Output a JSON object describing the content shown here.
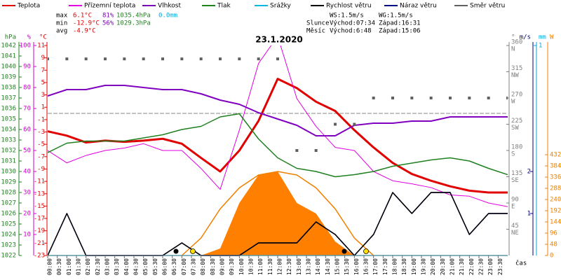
{
  "chart_data": {
    "type": "line",
    "title": "23.1.2020",
    "xlabel": "čas",
    "xlim": [
      0,
      24
    ],
    "xticks": [
      {
        "value": 0,
        "label": "00:00"
      },
      {
        "value": 0.5,
        "label": "00:30"
      },
      {
        "value": 1,
        "label": "01:00"
      },
      {
        "value": 1.5,
        "label": "01:30"
      },
      {
        "value": 2,
        "label": "02:00"
      },
      {
        "value": 2.5,
        "label": "02:30"
      },
      {
        "value": 3,
        "label": "03:00"
      },
      {
        "value": 3.5,
        "label": "03:30"
      },
      {
        "value": 4,
        "label": "04:00"
      },
      {
        "value": 4.5,
        "label": "04:30"
      },
      {
        "value": 5,
        "label": "05:00"
      },
      {
        "value": 5.5,
        "label": "05:30"
      },
      {
        "value": 6,
        "label": "06:00"
      },
      {
        "value": 6.5,
        "label": "06:30"
      },
      {
        "value": 7,
        "label": "07:00"
      },
      {
        "value": 7.5,
        "label": "07:30"
      },
      {
        "value": 8,
        "label": "08:00"
      },
      {
        "value": 8.5,
        "label": "08:30"
      },
      {
        "value": 9,
        "label": "09:00"
      },
      {
        "value": 9.5,
        "label": "09:30"
      },
      {
        "value": 10,
        "label": "10:00"
      },
      {
        "value": 10.5,
        "label": "10:30"
      },
      {
        "value": 11,
        "label": "11:00"
      },
      {
        "value": 11.5,
        "label": "11:30"
      },
      {
        "value": 12,
        "label": "12:00"
      },
      {
        "value": 12.5,
        "label": "12:30"
      },
      {
        "value": 13,
        "label": "13:00"
      },
      {
        "value": 13.5,
        "label": "13:30"
      },
      {
        "value": 14,
        "label": "14:00"
      },
      {
        "value": 14.5,
        "label": "14:30"
      },
      {
        "value": 15,
        "label": "15:00"
      },
      {
        "value": 15.5,
        "label": "15:30"
      },
      {
        "value": 16,
        "label": "16:00"
      },
      {
        "value": 16.5,
        "label": "16:30"
      },
      {
        "value": 17,
        "label": "17:00"
      },
      {
        "value": 17.5,
        "label": "17:30"
      },
      {
        "value": 18,
        "label": "18:00"
      },
      {
        "value": 18.5,
        "label": "18:30"
      },
      {
        "value": 19,
        "label": "19:00"
      },
      {
        "value": 19.5,
        "label": "19:30"
      },
      {
        "value": 20,
        "label": "20:00"
      },
      {
        "value": 20.5,
        "label": "20:30"
      },
      {
        "value": 21,
        "label": "21:00"
      },
      {
        "value": 21.5,
        "label": "21:30"
      },
      {
        "value": 22,
        "label": "22:00"
      },
      {
        "value": 22.5,
        "label": "22:30"
      },
      {
        "value": 23,
        "label": "23:00"
      },
      {
        "value": 23.5,
        "label": "23:30"
      }
    ],
    "ylabel": "°C",
    "ylim": [
      -23,
      11
    ],
    "yticks": [
      -23,
      -21,
      -19,
      -17,
      -15,
      -13,
      -11,
      -9,
      -7,
      -5,
      -3,
      -1,
      1,
      3,
      5,
      7,
      9,
      11
    ],
    "y_color": "#e00000",
    "zero_line": true,
    "pressure_axis": {
      "label": "hPa",
      "color": "#208020",
      "lim": [
        1022,
        1042
      ],
      "ticks": [
        1022,
        1023,
        1024,
        1025,
        1026,
        1027,
        1028,
        1029,
        1030,
        1031,
        1032,
        1033,
        1034,
        1035,
        1036,
        1037,
        1038,
        1039,
        1040,
        1041,
        1042
      ]
    },
    "humidity_axis": {
      "label": "%",
      "color": "#d000d0",
      "lim": [
        0,
        100
      ],
      "ticks": [
        10,
        20,
        30,
        40,
        50,
        60,
        70,
        80,
        90,
        100
      ]
    },
    "direction_axis": {
      "label": "°",
      "color": "#808080",
      "lim": [
        0,
        360
      ],
      "ticks": [
        45,
        90,
        135,
        180,
        225,
        270,
        315,
        360
      ],
      "compass": [
        "NE",
        "E",
        "SE",
        "S",
        "SW",
        "W",
        "NW",
        "N"
      ]
    },
    "speed_axis": {
      "label": "m/s",
      "color": "#000080",
      "lim": [
        0,
        5
      ],
      "ticks": [
        1,
        2
      ]
    },
    "rain_axis": {
      "label": "mm",
      "color": "#00a8d8",
      "lim": [
        0,
        1
      ],
      "ticks": [
        1
      ]
    },
    "solar_axis": {
      "label": "W",
      "color": "#f08000",
      "lim": [
        0,
        900
      ],
      "ticks": [
        0,
        48,
        96,
        144,
        192,
        240,
        288,
        336,
        384,
        432
      ]
    },
    "x": [
      0,
      1,
      2,
      3,
      4,
      5,
      6,
      7,
      8,
      9,
      10,
      11,
      12,
      13,
      14,
      15,
      16,
      17,
      18,
      19,
      20,
      21,
      22,
      23,
      24
    ],
    "solar": {
      "color": "#ff8000",
      "values": [
        0,
        0,
        0,
        0,
        0,
        0,
        0,
        0,
        0,
        30,
        225,
        345,
        360,
        225,
        180,
        60,
        0,
        0,
        0,
        0,
        0,
        0,
        0,
        0,
        0
      ]
    },
    "solar_clear": {
      "color": "#f08000",
      "values": [
        null,
        null,
        null,
        null,
        null,
        null,
        null,
        0,
        75,
        200,
        290,
        345,
        360,
        345,
        290,
        200,
        75,
        0,
        null,
        null,
        null,
        null,
        null,
        null,
        null
      ]
    },
    "series": [
      {
        "name": "Teplota",
        "color": "#e00000",
        "axis": "y",
        "width": 3,
        "values": [
          -2.9,
          -3.6,
          -4.7,
          -4.4,
          -4.6,
          -4.4,
          -4.1,
          -4.9,
          -7.2,
          -9.4,
          -6.0,
          -1.2,
          5.6,
          4.1,
          1.9,
          0.4,
          -2.7,
          -5.5,
          -8.0,
          -9.8,
          -10.9,
          -11.8,
          -12.5,
          -12.8,
          -12.8
        ]
      },
      {
        "name": "Přízemní teplota",
        "color": "#e000e0",
        "axis": "y",
        "width": 1,
        "values": [
          -6.0,
          -8.0,
          -6.8,
          -6.0,
          -5.6,
          -4.9,
          -6.0,
          -6.0,
          -8.9,
          -12.3,
          -2.7,
          8.1,
          12.5,
          2.4,
          -2.1,
          -5.5,
          -6.0,
          -9.4,
          -10.9,
          -11.4,
          -12.0,
          -13.2,
          -13.4,
          -14.5,
          -15.1
        ]
      },
      {
        "name": "Vlhkost",
        "color": "#8000c0",
        "axis": "humidity",
        "width": 2,
        "values": [
          76,
          79,
          79,
          81,
          81,
          80,
          79,
          79,
          77,
          74,
          72,
          68,
          65,
          62,
          57,
          57,
          62,
          63,
          63,
          64,
          64,
          66,
          66,
          66,
          66
        ]
      },
      {
        "name": "Tlak",
        "color": "#208020",
        "axis": "pressure",
        "width": 1.5,
        "values": [
          1031.8,
          1032.7,
          1032.9,
          1032.9,
          1032.9,
          1033.2,
          1033.5,
          1034.0,
          1034.3,
          1035.2,
          1035.5,
          1033.1,
          1031.3,
          1030.3,
          1030.0,
          1029.5,
          1029.7,
          1030.0,
          1030.5,
          1030.8,
          1031.1,
          1031.3,
          1031.0,
          1030.3,
          1029.7
        ]
      },
      {
        "name": "Srážky",
        "color": "#00b8e0",
        "axis": "rain",
        "width": 1.5,
        "values": [
          0,
          0,
          0,
          0,
          0,
          0,
          0,
          0,
          0,
          0,
          0,
          0,
          0,
          0,
          0,
          0,
          0,
          0,
          0,
          0,
          0,
          0,
          0,
          0,
          0
        ]
      },
      {
        "name": "Náraz větru",
        "color": "#000080",
        "axis": "speed",
        "width": 1.5,
        "values": [
          0,
          1.0,
          0,
          0,
          0,
          0,
          0,
          0.3,
          0,
          0,
          0,
          0.3,
          0.3,
          0.3,
          0.8,
          0.5,
          0,
          0.5,
          1.5,
          1.0,
          1.5,
          1.5,
          0.5,
          1.0,
          1.0
        ]
      },
      {
        "name": "Rychlost větru",
        "color": "#000000",
        "axis": "speed",
        "width": 1.5,
        "values": [
          0,
          1.0,
          0,
          0,
          0,
          0,
          0,
          0.3,
          0,
          0,
          0,
          0.3,
          0.3,
          0.3,
          0.8,
          0.5,
          0,
          0.5,
          1.5,
          1.0,
          1.5,
          1.5,
          0.5,
          1.0,
          1.0
        ]
      },
      {
        "name": "Směr větru",
        "color": "#606060",
        "axis": "direction",
        "markers": true,
        "values": [
          337,
          337,
          337,
          337,
          337,
          337,
          337,
          337,
          337,
          337,
          337,
          337,
          337,
          180,
          180,
          225,
          225,
          270,
          270,
          270,
          270,
          270,
          270,
          270,
          270
        ]
      }
    ],
    "legend_order": [
      0,
      1,
      2,
      3,
      4,
      6,
      5,
      7
    ],
    "stats": [
      [
        "max",
        "6.1°C",
        "81%",
        "1035.4hPa",
        "0.0mm"
      ],
      [
        "min",
        "-12.9°C",
        "56%",
        "1029.3hPa"
      ],
      [
        "avg",
        "-4.9°C"
      ]
    ],
    "wind_info": [
      "WS:1.5m/s",
      "WG:1.5m/s"
    ],
    "sun": [
      "Slunce",
      "Východ:07:34",
      "Západ:16:31"
    ],
    "moon": [
      "Měsíc",
      "Východ:6:48",
      "Západ:15:06"
    ]
  }
}
